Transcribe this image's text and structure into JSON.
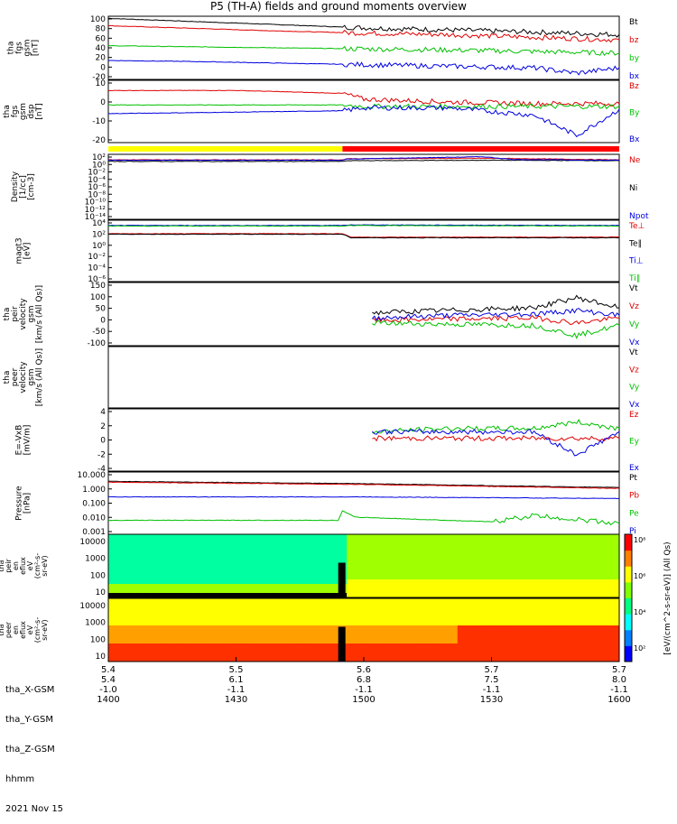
{
  "title": "P5 (TH-A) fields and ground moments overview",
  "chart_data": {
    "type": "line",
    "time": {
      "start": "2021-11-15 14:00",
      "end": "2021-11-15 16:00",
      "major_ticks": [
        "1400",
        "1430",
        "1500",
        "1530",
        "1600"
      ]
    },
    "panels": [
      {
        "id": "fgs-gsm",
        "ylabel": [
          "tha",
          "fgs",
          "gsm",
          "[nT]"
        ],
        "yticks": [
          "100",
          "80",
          "60",
          "40",
          "20",
          "0",
          "-20"
        ],
        "ylim": [
          -20,
          100
        ],
        "series": [
          {
            "name": "Bt",
            "color": "#000000",
            "points": [
              [
                0,
                96
              ],
              [
                20,
                90
              ],
              [
                40,
                84
              ],
              [
                60,
                78
              ],
              [
                80,
                74
              ],
              [
                100,
                70
              ],
              [
                120,
                65
              ]
            ]
          },
          {
            "name": "bz",
            "color": "#e00000",
            "points": [
              [
                0,
                82
              ],
              [
                20,
                77
              ],
              [
                40,
                72
              ],
              [
                60,
                68
              ],
              [
                80,
                65
              ],
              [
                100,
                60
              ],
              [
                120,
                55
              ]
            ]
          },
          {
            "name": "by",
            "color": "#00c000",
            "points": [
              [
                0,
                44
              ],
              [
                20,
                42
              ],
              [
                40,
                40
              ],
              [
                60,
                38
              ],
              [
                80,
                36
              ],
              [
                100,
                33
              ],
              [
                120,
                30
              ]
            ]
          },
          {
            "name": "bx",
            "color": "#0000e0",
            "points": [
              [
                0,
                16
              ],
              [
                20,
                14
              ],
              [
                40,
                11
              ],
              [
                60,
                8
              ],
              [
                80,
                5
              ],
              [
                100,
                2
              ],
              [
                110,
                -8
              ],
              [
                120,
                2
              ]
            ]
          }
        ]
      },
      {
        "id": "fgs-gsm-2",
        "ylabel": [
          "tha",
          "fgs",
          "gsm",
          "dsp",
          "[nT]"
        ],
        "yticks": [
          "10",
          "0",
          "-10",
          "-20"
        ],
        "ylim": [
          -25,
          18
        ],
        "series": [
          {
            "name": "Bz",
            "color": "#e00000",
            "points": [
              [
                0,
                11
              ],
              [
                30,
                11
              ],
              [
                55,
                9
              ],
              [
                60,
                5
              ],
              [
                80,
                3
              ],
              [
                100,
                2
              ],
              [
                120,
                2
              ]
            ]
          },
          {
            "name": "By",
            "color": "#00c000",
            "points": [
              [
                0,
                1
              ],
              [
                30,
                1
              ],
              [
                55,
                1
              ],
              [
                60,
                0
              ],
              [
                80,
                0
              ],
              [
                100,
                0
              ],
              [
                120,
                0
              ]
            ]
          },
          {
            "name": "Bx",
            "color": "#0000e0",
            "points": [
              [
                0,
                -5
              ],
              [
                30,
                -4
              ],
              [
                55,
                -3
              ],
              [
                60,
                -1
              ],
              [
                80,
                -1
              ],
              [
                100,
                -6
              ],
              [
                110,
                -20
              ],
              [
                120,
                -2
              ]
            ]
          }
        ]
      },
      {
        "id": "density",
        "ylabel": [
          "Density",
          "[1/cc]",
          "[cm-3]"
        ],
        "yticks": [
          "10²",
          "10⁰",
          "10⁻²",
          "10⁻⁴",
          "10⁻⁶",
          "10⁻⁸",
          "10⁻¹⁰",
          "10⁻¹²",
          "10⁻¹⁴"
        ],
        "ylim": [
          -14,
          2.5
        ],
        "series": [
          {
            "name": "Ne",
            "color": "#e00000",
            "points": [
              [
                0,
                1.1
              ],
              [
                55,
                1.1
              ],
              [
                56,
                1.4
              ],
              [
                90,
                1.5
              ],
              [
                120,
                1.1
              ]
            ]
          },
          {
            "name": "Ni",
            "color": "#000000",
            "points": [
              [
                0,
                0.7
              ],
              [
                55,
                0.7
              ],
              [
                56,
                0.9
              ],
              [
                90,
                1.0
              ],
              [
                120,
                0.9
              ]
            ]
          },
          {
            "name": "Npot",
            "color": "#0000e0",
            "points": [
              [
                0,
                1.0
              ],
              [
                55,
                1.0
              ],
              [
                56,
                1.3
              ],
              [
                88,
                1.9
              ],
              [
                95,
                1.2
              ],
              [
                120,
                1.0
              ]
            ]
          }
        ]
      },
      {
        "id": "temperature",
        "ylabel": [
          "magt3",
          "[eV]"
        ],
        "yticks": [
          "10⁴",
          "10²",
          "10⁰",
          "10⁻²",
          "10⁻⁴",
          "10⁻⁶"
        ],
        "ylim": [
          -6,
          4.5
        ],
        "series": [
          {
            "name": "Te⊥",
            "color": "#e00000",
            "points": [
              [
                0,
                2.2
              ],
              [
                55,
                2.2
              ],
              [
                57,
                1.6
              ],
              [
                120,
                1.6
              ]
            ]
          },
          {
            "name": "Te∥",
            "color": "#000000",
            "points": [
              [
                0,
                2.1
              ],
              [
                55,
                2.1
              ],
              [
                57,
                1.5
              ],
              [
                120,
                1.5
              ]
            ]
          },
          {
            "name": "Ti⊥",
            "color": "#0000e0",
            "points": [
              [
                0,
                3.6
              ],
              [
                55,
                3.6
              ],
              [
                57,
                3.7
              ],
              [
                120,
                3.6
              ]
            ]
          },
          {
            "name": "Ti∥",
            "color": "#00c000",
            "points": [
              [
                0,
                3.5
              ],
              [
                55,
                3.5
              ],
              [
                57,
                3.6
              ],
              [
                120,
                3.5
              ]
            ]
          }
        ]
      },
      {
        "id": "peir-velocity",
        "ylabel": [
          "tha",
          "peir",
          "velocity",
          "gsm",
          "[km/s (All Qs)]"
        ],
        "yticks": [
          "150",
          "100",
          "50",
          "0",
          "-50",
          "-100"
        ],
        "ylim": [
          -100,
          150
        ],
        "series": [
          {
            "name": "Vt",
            "color": "#000000",
            "points": [
              [
                62,
                30
              ],
              [
                80,
                40
              ],
              [
                100,
                50
              ],
              [
                110,
                90
              ],
              [
                120,
                50
              ]
            ]
          },
          {
            "name": "Vz",
            "color": "#e00000",
            "points": [
              [
                62,
                0
              ],
              [
                80,
                5
              ],
              [
                100,
                10
              ],
              [
                110,
                -10
              ],
              [
                120,
                10
              ]
            ]
          },
          {
            "name": "Vy",
            "color": "#00c000",
            "points": [
              [
                62,
                -10
              ],
              [
                80,
                -15
              ],
              [
                100,
                -20
              ],
              [
                110,
                -60
              ],
              [
                120,
                -20
              ]
            ]
          },
          {
            "name": "Vx",
            "color": "#0000e0",
            "points": [
              [
                62,
                10
              ],
              [
                80,
                20
              ],
              [
                100,
                25
              ],
              [
                110,
                40
              ],
              [
                120,
                20
              ]
            ]
          }
        ]
      },
      {
        "id": "peer-velocity",
        "ylabel": [
          "tha",
          "peer",
          "velocity",
          "gsm",
          "[km/s (All Qs)]"
        ],
        "yticks": [],
        "ylim": [
          -100,
          150
        ],
        "series": [
          {
            "name": "Vt",
            "color": "#000000",
            "points": []
          },
          {
            "name": "Vz",
            "color": "#e00000",
            "points": []
          },
          {
            "name": "Vy",
            "color": "#00c000",
            "points": []
          },
          {
            "name": "Vx",
            "color": "#0000e0",
            "points": []
          }
        ]
      },
      {
        "id": "efield",
        "ylabel": [
          "E=-VxB",
          "[mV/m]"
        ],
        "yticks": [
          "4",
          "2",
          "0",
          "-2",
          "-4"
        ],
        "ylim": [
          -5,
          4.5
        ],
        "series": [
          {
            "name": "Ez",
            "color": "#e00000",
            "points": [
              [
                62,
                0
              ],
              [
                80,
                0
              ],
              [
                100,
                0
              ],
              [
                120,
                0
              ]
            ]
          },
          {
            "name": "Ey",
            "color": "#00c000",
            "points": [
              [
                62,
                1
              ],
              [
                80,
                1.5
              ],
              [
                100,
                1.5
              ],
              [
                110,
                2.5
              ],
              [
                120,
                1.5
              ]
            ]
          },
          {
            "name": "Ex",
            "color": "#0000e0",
            "points": [
              [
                62,
                1
              ],
              [
                80,
                1
              ],
              [
                100,
                1
              ],
              [
                110,
                -2.5
              ],
              [
                120,
                1
              ]
            ]
          }
        ]
      },
      {
        "id": "pressure",
        "ylabel": [
          "Pressure",
          "[nPa]"
        ],
        "yticks": [
          "10.000",
          "1.000",
          "0.100",
          "0.010",
          "0.001"
        ],
        "ylim": [
          -3,
          1
        ],
        "log": true,
        "series": [
          {
            "name": "Pt",
            "color": "#000000",
            "points": [
              [
                0,
                0.4
              ],
              [
                60,
                0.25
              ],
              [
                120,
                0.0
              ]
            ]
          },
          {
            "name": "Pb",
            "color": "#e00000",
            "points": [
              [
                0,
                0.35
              ],
              [
                60,
                0.2
              ],
              [
                120,
                -0.05
              ]
            ]
          },
          {
            "name": "Pe",
            "color": "#00c000",
            "points": [
              [
                0,
                -2.1
              ],
              [
                54,
                -2.1
              ],
              [
                55,
                -1.5
              ],
              [
                58,
                -1.9
              ],
              [
                90,
                -2.2
              ],
              [
                100,
                -1.8
              ],
              [
                120,
                -2.3
              ]
            ]
          },
          {
            "name": "Pi",
            "color": "#0000e0",
            "points": [
              [
                0,
                -0.6
              ],
              [
                60,
                -0.6
              ],
              [
                120,
                -0.7
              ]
            ]
          }
        ]
      }
    ],
    "spectrograms": [
      {
        "id": "peir-en-eflux",
        "ylabel": [
          "tha",
          "peir",
          "en",
          "eflux",
          "eV",
          "(cm²-s-",
          "sr-eV)"
        ],
        "yticks": [
          "10000",
          "1000",
          "100",
          "10"
        ]
      },
      {
        "id": "peer-en-eflux",
        "ylabel": [
          "tha",
          "peer",
          "en",
          "eflux",
          "eV",
          "(cm²-s-",
          "sr-eV)"
        ],
        "yticks": [
          "10000",
          "1000",
          "100",
          "10"
        ]
      }
    ],
    "colorbar": {
      "label": "[eV/(cm^2-s-sr-eV)] (All Qs)",
      "ticks": [
        "10⁸",
        "10⁶",
        "10⁴",
        "10²"
      ]
    },
    "mode_bar": [
      {
        "to": 55,
        "color": "#ffff00"
      },
      {
        "to": 120,
        "color": "#ff0000"
      }
    ],
    "xticks": [
      "1400",
      "1430",
      "1500",
      "1530",
      "1600"
    ]
  },
  "footer": {
    "rows": [
      {
        "label": "tha_X-GSM",
        "values": [
          "5.4",
          "5.5",
          "5.6",
          "5.7",
          "5.7"
        ]
      },
      {
        "label": "tha_Y-GSM",
        "values": [
          "5.4",
          "6.1",
          "6.8",
          "7.5",
          "8.0"
        ]
      },
      {
        "label": "tha_Z-GSM",
        "values": [
          "-1.0",
          "-1.1",
          "-1.1",
          "-1.1",
          "-1.1"
        ]
      },
      {
        "label": "hhmm",
        "values": [
          "1400",
          "1430",
          "1500",
          "1530",
          "1600"
        ]
      }
    ],
    "date": "2021 Nov 15"
  }
}
